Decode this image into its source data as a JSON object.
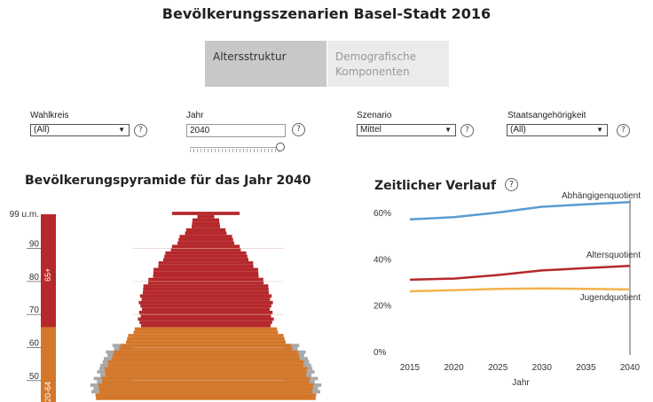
{
  "header": {
    "title": "Bevölkerungsszenarien Basel-Stadt 2016"
  },
  "tabs": [
    {
      "label": "Altersstruktur",
      "active": true
    },
    {
      "label": "Demografische Komponenten",
      "active": false
    }
  ],
  "filters": {
    "wahlkreis": {
      "label": "Wahlkreis",
      "value": "(All)"
    },
    "jahr": {
      "label": "Jahr",
      "value": "2040",
      "slider_fraction": 1.0
    },
    "szenario": {
      "label": "Szenario",
      "value": "Mittel"
    },
    "staatsangehoerigkeit": {
      "label": "Staatsangehörigkeit",
      "value": "(All)"
    }
  },
  "icons": {
    "help": "question-circle-icon",
    "dropdown": "caret-down-icon"
  },
  "colors": {
    "old": "#b5282b",
    "working": "#d4772a",
    "young": "#f2b24d",
    "line_dep": "#5b9bd0",
    "line_old": "#b5282b",
    "line_young": "#f2b24d",
    "ghost": "#a8a8a8"
  },
  "pyramid": {
    "title": "Bevölkerungspyramide für das Jahr 2040",
    "age_ticks": [
      "99 u.m.",
      "90",
      "80",
      "70",
      "60",
      "50"
    ],
    "group_labels": [
      "65+",
      "20-64"
    ]
  },
  "chart_data": {
    "type": "line",
    "title": "Zeitlicher Verlauf",
    "xlabel": "Jahr",
    "ylabel": "",
    "x": [
      2015,
      2020,
      2025,
      2030,
      2035,
      2040
    ],
    "x_ticks": [
      "2015",
      "2020",
      "2025",
      "2030",
      "2035",
      "2040"
    ],
    "y_ticks": [
      "0%",
      "20%",
      "40%",
      "60%"
    ],
    "ylim": [
      0,
      0.68
    ],
    "grid": false,
    "series": [
      {
        "name": "Abhängigenquotient",
        "values": [
          0.57,
          0.58,
          0.6,
          0.625,
          0.635,
          0.645
        ]
      },
      {
        "name": "Altersquotient",
        "values": [
          0.31,
          0.315,
          0.33,
          0.35,
          0.36,
          0.37
        ]
      },
      {
        "name": "Jugendquotient",
        "values": [
          0.26,
          0.265,
          0.27,
          0.272,
          0.27,
          0.268
        ]
      }
    ],
    "highlight_x": 2040
  }
}
